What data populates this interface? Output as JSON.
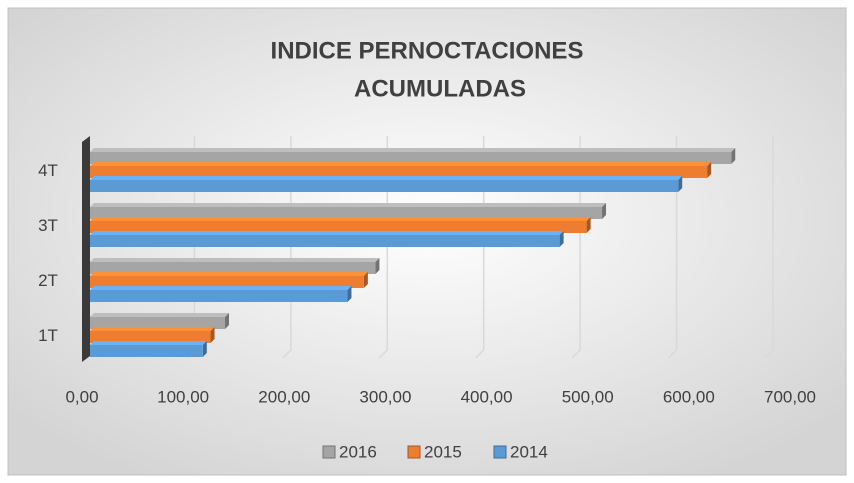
{
  "chart_data": {
    "type": "bar",
    "orientation": "horizontal",
    "title": [
      "INDICE PERNOCTACIONES",
      "ACUMULADAS"
    ],
    "categories": [
      "1T",
      "2T",
      "3T",
      "4T"
    ],
    "series": [
      {
        "name": "2016",
        "color": "#a5a5a5",
        "values": [
          140,
          296,
          531,
          665
        ]
      },
      {
        "name": "2015",
        "color": "#ed7d31",
        "values": [
          125,
          284,
          515,
          640
        ]
      },
      {
        "name": "2014",
        "color": "#5b9bd5",
        "values": [
          117,
          267,
          487,
          610
        ]
      }
    ],
    "xlim": [
      0,
      700
    ],
    "xticks": [
      {
        "value": 0,
        "label": "0,00"
      },
      {
        "value": 100,
        "label": "100,00"
      },
      {
        "value": 200,
        "label": "200,00"
      },
      {
        "value": 300,
        "label": "300,00"
      },
      {
        "value": 400,
        "label": "400,00"
      },
      {
        "value": 500,
        "label": "500,00"
      },
      {
        "value": 600,
        "label": "600,00"
      },
      {
        "value": 700,
        "label": "700,00"
      }
    ],
    "grid": true,
    "legend": "bottom"
  }
}
